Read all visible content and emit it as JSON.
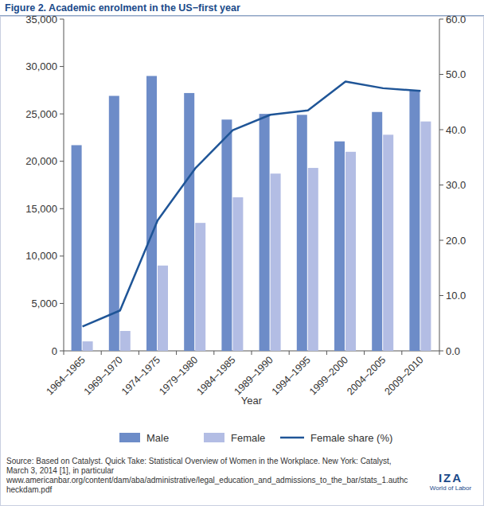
{
  "chart_data": {
    "type": "bar",
    "title": "Figure 2. Academic enrolment in the US−first year",
    "x_label": "Year",
    "categories": [
      "1964–1965",
      "1969–1970",
      "1974–1975",
      "1979–1980",
      "1984–1985",
      "1989–1990",
      "1994–1995",
      "1999–2000",
      "2004–2005",
      "2009–2010"
    ],
    "series": [
      {
        "name": "Male",
        "color": "#6d8cc8",
        "values": [
          21700,
          26900,
          29000,
          27200,
          24400,
          25000,
          24900,
          22100,
          25200,
          27500
        ]
      },
      {
        "name": "Female",
        "color": "#b3bde4",
        "values": [
          1000,
          2100,
          9000,
          13500,
          16200,
          18700,
          19300,
          21000,
          22800,
          24200
        ]
      },
      {
        "name": "Female share (%)",
        "type": "line",
        "axis": "y2",
        "color": "#1f5597",
        "values": [
          4.4,
          7.3,
          23.6,
          33.0,
          39.9,
          42.7,
          43.5,
          48.7,
          47.5,
          47.0
        ]
      }
    ],
    "ylim": [
      0,
      35000
    ],
    "yticks": [
      0,
      {
        "value": 5000,
        "label": "5,000"
      },
      {
        "value": 10000,
        "label": "10,000"
      },
      {
        "value": 15000,
        "label": "15,000"
      },
      {
        "value": 20000,
        "label": "20,000"
      },
      {
        "value": 25000,
        "label": "25,000"
      },
      {
        "value": 30000,
        "label": "30,000"
      },
      {
        "value": 35000,
        "label": "35,000"
      }
    ],
    "y2lim": [
      0,
      60
    ],
    "y2ticks": [
      {
        "value": 0,
        "label": "0.0"
      },
      {
        "value": 10,
        "label": "10.0"
      },
      {
        "value": 20,
        "label": "20.0"
      },
      {
        "value": 30,
        "label": "30.0"
      },
      {
        "value": 40,
        "label": "40.0"
      },
      {
        "value": 50,
        "label": "50.0"
      },
      {
        "value": 60,
        "label": "60.0"
      }
    ],
    "grid": false,
    "legend": "bottom",
    "source": "Source: Based on Catalyst. Quick Take: Statistical Overview of Women in the Workplace. New York: Catalyst, March 3, 2014 [1], in particular www.americanbar.org/content/dam/aba/administrative/legal_education_and_admissions_to_the_bar/stats_1.authcheckdam.pdf",
    "brand": [
      "IZA",
      "World of Labor"
    ]
  }
}
